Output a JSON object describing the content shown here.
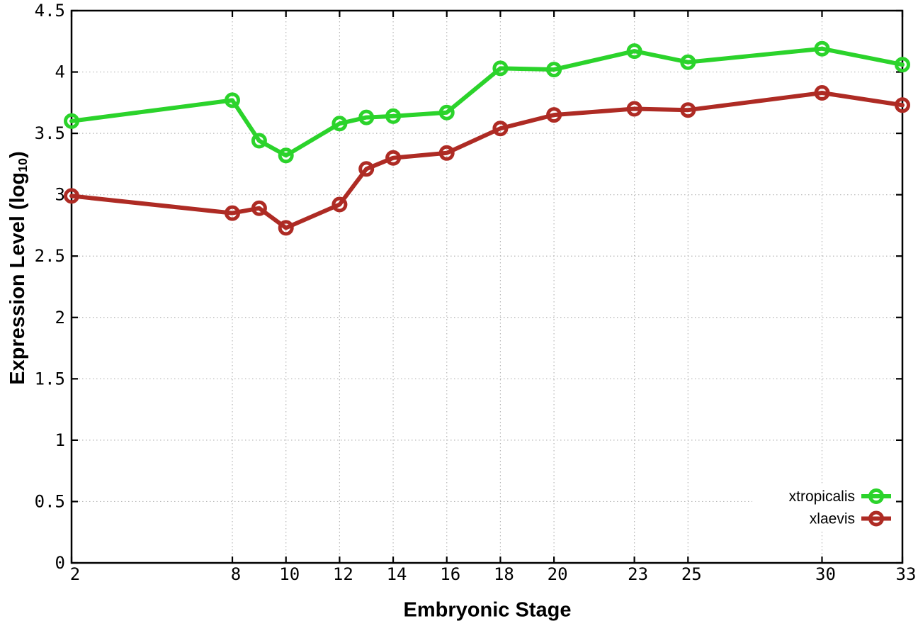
{
  "chart_data": {
    "type": "line",
    "title": "",
    "xlabel": "Embryonic Stage",
    "ylabel": "Expression Level (log10)",
    "ylabel_parts": {
      "prefix": "Expression Level (log",
      "sub": "10",
      "suffix": ")"
    },
    "xlim": [
      2,
      33
    ],
    "ylim": [
      0,
      4.5
    ],
    "grid": true,
    "legend_position": "bottom-right",
    "x": [
      2,
      8,
      9,
      10,
      12,
      13,
      14,
      16,
      18,
      20,
      23,
      25,
      30,
      33
    ],
    "x_ticks": [
      {
        "value": 2,
        "label": "2"
      },
      {
        "value": 8,
        "label": "8"
      },
      {
        "value": 10,
        "label": "10"
      },
      {
        "value": 12,
        "label": "12"
      },
      {
        "value": 14,
        "label": "14"
      },
      {
        "value": 16,
        "label": "16"
      },
      {
        "value": 18,
        "label": "18"
      },
      {
        "value": 20,
        "label": "20"
      },
      {
        "value": 23,
        "label": "23"
      },
      {
        "value": 25,
        "label": "25"
      },
      {
        "value": 30,
        "label": "30"
      },
      {
        "value": 33,
        "label": "33"
      }
    ],
    "y_ticks": [
      {
        "value": 0,
        "label": "0"
      },
      {
        "value": 0.5,
        "label": "0.5"
      },
      {
        "value": 1,
        "label": "1"
      },
      {
        "value": 1.5,
        "label": "1.5"
      },
      {
        "value": 2,
        "label": "2"
      },
      {
        "value": 2.5,
        "label": "2.5"
      },
      {
        "value": 3,
        "label": "3"
      },
      {
        "value": 3.5,
        "label": "3.5"
      },
      {
        "value": 4,
        "label": "4"
      },
      {
        "value": 4.5,
        "label": "4.5"
      }
    ],
    "series": [
      {
        "name": "xtropicalis",
        "color": "#2bd32b",
        "values": [
          3.6,
          3.77,
          3.44,
          3.32,
          3.58,
          3.63,
          3.64,
          3.67,
          4.03,
          4.02,
          4.17,
          4.08,
          4.19,
          4.06
        ]
      },
      {
        "name": "xlaevis",
        "color": "#ae2b24",
        "values": [
          2.99,
          2.85,
          2.89,
          2.73,
          2.92,
          3.21,
          3.3,
          3.34,
          3.54,
          3.65,
          3.7,
          3.69,
          3.83,
          3.73
        ]
      }
    ],
    "colors": {
      "background": "#ffffff",
      "axis": "#000000",
      "grid": "#b5b5b5",
      "text": "#000000"
    }
  }
}
